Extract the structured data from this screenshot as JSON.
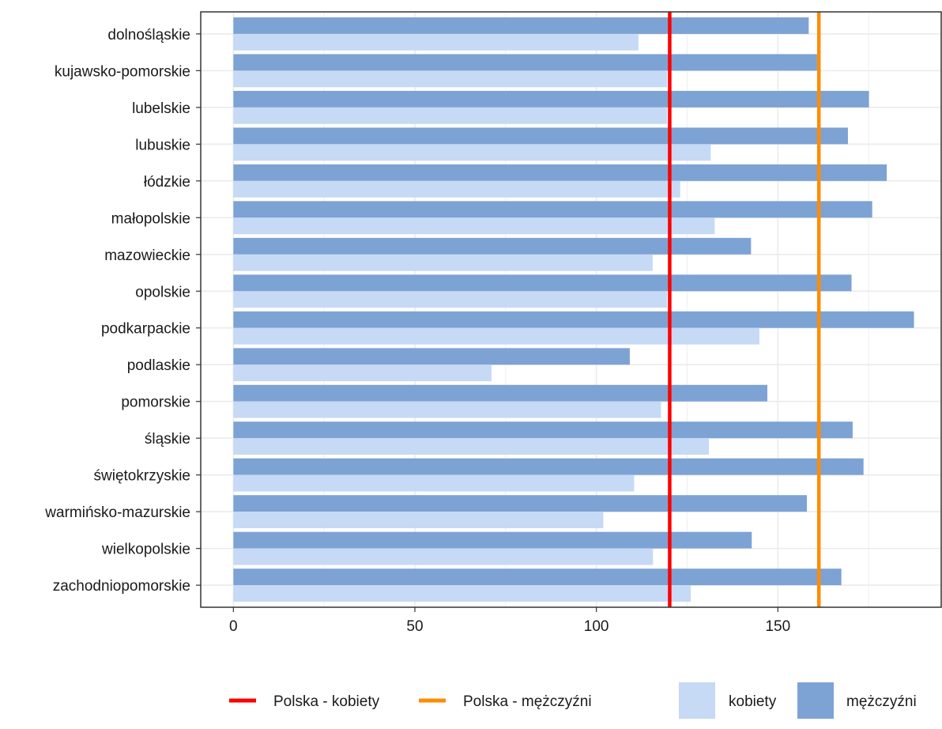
{
  "chart_data": {
    "type": "bar",
    "orientation": "horizontal",
    "title": "",
    "xlabel": "",
    "ylabel": "",
    "xlim": [
      -9,
      195
    ],
    "x_ticks": [
      0,
      50,
      100,
      150
    ],
    "x_tick_labels": [
      "0",
      "50",
      "100",
      "150"
    ],
    "grid": true,
    "legend_position": "bottom",
    "categories": [
      "dolnośląskie",
      "kujawsko-pomorskie",
      "lubelskie",
      "lubuskie",
      "łódzkie",
      "małopolskie",
      "mazowieckie",
      "opolskie",
      "podkarpackie",
      "podlaskie",
      "pomorskie",
      "śląskie",
      "świętokrzyskie",
      "warmińsko-mazurskie",
      "wielkopolskie",
      "zachodniopomorskie"
    ],
    "series": [
      {
        "name": "mężczyźni",
        "color": "#7da2d4",
        "values": [
          158.5,
          160.8,
          175.1,
          169.3,
          180.0,
          176.0,
          142.6,
          170.3,
          187.5,
          109.2,
          147.1,
          170.6,
          173.6,
          158.0,
          142.8,
          167.5
        ]
      },
      {
        "name": "kobiety",
        "color": "#c6d9f5",
        "values": [
          111.6,
          119.5,
          119.5,
          131.5,
          123.1,
          132.6,
          115.5,
          119.5,
          144.9,
          71.1,
          117.8,
          131.0,
          110.4,
          101.9,
          115.6,
          126.0
        ]
      }
    ],
    "reference_lines": [
      {
        "name": "Polska - kobiety",
        "value": 120.2,
        "color": "#ff0000"
      },
      {
        "name": "Polska - mężczyźni",
        "value": 161.3,
        "color": "#ff8c00"
      }
    ]
  },
  "legend": {
    "lines": [
      {
        "label": "Polska - kobiety",
        "color": "#ff0000"
      },
      {
        "label": "Polska - mężczyźni",
        "color": "#ff8c00"
      }
    ],
    "fills": [
      {
        "label": "kobiety",
        "color": "#c6d9f5"
      },
      {
        "label": "mężczyźni",
        "color": "#7da2d4"
      }
    ]
  }
}
